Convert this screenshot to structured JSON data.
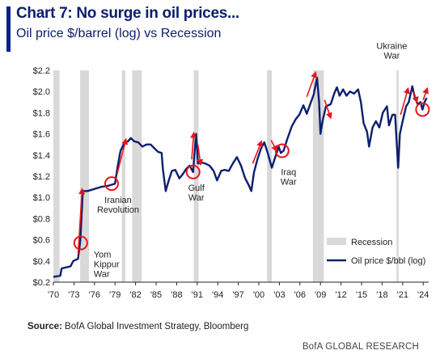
{
  "header": {
    "title": "Chart 7: No surge in oil prices...",
    "subtitle": "Oil price $/barrel (log) vs Recession"
  },
  "footer": {
    "source_label": "Source:",
    "source_text": " BofA Global Investment Strategy, Bloomberg",
    "brand": "BofA GLOBAL RESEARCH"
  },
  "colors": {
    "line": "#0d1f6e",
    "recession": "#d9d9d9",
    "arrow": "#e8141c",
    "circle": "#e8141c",
    "accent": "#0a1f8f"
  },
  "chart_data": {
    "type": "line",
    "ylabel": "",
    "xlabel": "",
    "ylim": [
      0.2,
      2.2
    ],
    "xlim": [
      1970,
      2024.8
    ],
    "grid": false,
    "legend_position": "bottom-right",
    "xticks": [
      {
        "x": 1970,
        "label": "'70"
      },
      {
        "x": 1973,
        "label": "'73"
      },
      {
        "x": 1976,
        "label": "'76"
      },
      {
        "x": 1979,
        "label": "'79"
      },
      {
        "x": 1982,
        "label": "'82"
      },
      {
        "x": 1985,
        "label": "'85"
      },
      {
        "x": 1988,
        "label": "'88"
      },
      {
        "x": 1991,
        "label": "'91"
      },
      {
        "x": 1994,
        "label": "'94"
      },
      {
        "x": 1997,
        "label": "'97"
      },
      {
        "x": 2000,
        "label": "'00"
      },
      {
        "x": 2003,
        "label": "'03"
      },
      {
        "x": 2006,
        "label": "'06"
      },
      {
        "x": 2009,
        "label": "'09"
      },
      {
        "x": 2012,
        "label": "'12"
      },
      {
        "x": 2015,
        "label": "'15"
      },
      {
        "x": 2018,
        "label": "'18"
      },
      {
        "x": 2021,
        "label": "'21"
      },
      {
        "x": 2024,
        "label": "'24"
      }
    ],
    "yticks": [
      {
        "y": 0.2,
        "label": "$0.2"
      },
      {
        "y": 0.4,
        "label": "$0.4"
      },
      {
        "y": 0.6,
        "label": "$0.6"
      },
      {
        "y": 0.8,
        "label": "$0.8"
      },
      {
        "y": 1.0,
        "label": "$1.0"
      },
      {
        "y": 1.2,
        "label": "$1.2"
      },
      {
        "y": 1.4,
        "label": "$1.4"
      },
      {
        "y": 1.6,
        "label": "$1.6"
      },
      {
        "y": 1.8,
        "label": "$1.8"
      },
      {
        "y": 2.0,
        "label": "$2.0"
      },
      {
        "y": 2.2,
        "label": "$2.2"
      }
    ],
    "recessions": [
      {
        "start": 1970.0,
        "end": 1970.9
      },
      {
        "start": 1973.9,
        "end": 1975.2
      },
      {
        "start": 1980.0,
        "end": 1980.5
      },
      {
        "start": 1981.5,
        "end": 1982.9
      },
      {
        "start": 1990.5,
        "end": 1991.2
      },
      {
        "start": 2001.2,
        "end": 2001.9
      },
      {
        "start": 2007.9,
        "end": 2009.5
      },
      {
        "start": 2020.1,
        "end": 2020.4
      }
    ],
    "series": [
      {
        "name": "Oil price $/bbl (log)",
        "points": [
          [
            1970.0,
            0.25
          ],
          [
            1971.0,
            0.26
          ],
          [
            1971.2,
            0.33
          ],
          [
            1972.5,
            0.35
          ],
          [
            1972.9,
            0.4
          ],
          [
            1973.6,
            0.42
          ],
          [
            1973.95,
            0.6
          ],
          [
            1974.3,
            1.06
          ],
          [
            1975.0,
            1.06
          ],
          [
            1976.0,
            1.08
          ],
          [
            1977.0,
            1.1
          ],
          [
            1978.0,
            1.11
          ],
          [
            1978.5,
            1.12
          ],
          [
            1979.0,
            1.13
          ],
          [
            1979.4,
            1.3
          ],
          [
            1979.8,
            1.44
          ],
          [
            1980.4,
            1.52
          ],
          [
            1980.9,
            1.53
          ],
          [
            1981.3,
            1.56
          ],
          [
            1981.8,
            1.53
          ],
          [
            1982.4,
            1.52
          ],
          [
            1983.0,
            1.48
          ],
          [
            1983.6,
            1.5
          ],
          [
            1984.2,
            1.5
          ],
          [
            1984.8,
            1.46
          ],
          [
            1985.3,
            1.43
          ],
          [
            1985.8,
            1.42
          ],
          [
            1986.0,
            1.26
          ],
          [
            1986.4,
            1.06
          ],
          [
            1986.8,
            1.15
          ],
          [
            1987.3,
            1.25
          ],
          [
            1987.8,
            1.26
          ],
          [
            1988.4,
            1.18
          ],
          [
            1988.9,
            1.22
          ],
          [
            1989.4,
            1.27
          ],
          [
            1989.9,
            1.3
          ],
          [
            1990.4,
            1.24
          ],
          [
            1990.7,
            1.5
          ],
          [
            1990.85,
            1.6
          ],
          [
            1991.1,
            1.32
          ],
          [
            1991.6,
            1.33
          ],
          [
            1992.2,
            1.32
          ],
          [
            1992.8,
            1.3
          ],
          [
            1993.4,
            1.25
          ],
          [
            1993.9,
            1.16
          ],
          [
            1994.5,
            1.25
          ],
          [
            1995.0,
            1.26
          ],
          [
            1995.6,
            1.25
          ],
          [
            1996.2,
            1.32
          ],
          [
            1996.8,
            1.38
          ],
          [
            1997.4,
            1.3
          ],
          [
            1998.0,
            1.18
          ],
          [
            1998.5,
            1.12
          ],
          [
            1998.9,
            1.06
          ],
          [
            1999.3,
            1.24
          ],
          [
            1999.8,
            1.36
          ],
          [
            2000.3,
            1.46
          ],
          [
            2000.8,
            1.52
          ],
          [
            2001.3,
            1.42
          ],
          [
            2001.9,
            1.28
          ],
          [
            2002.4,
            1.38
          ],
          [
            2002.9,
            1.48
          ],
          [
            2003.2,
            1.42
          ],
          [
            2003.6,
            1.44
          ],
          [
            2004.2,
            1.56
          ],
          [
            2004.8,
            1.67
          ],
          [
            2005.4,
            1.74
          ],
          [
            2005.9,
            1.78
          ],
          [
            2006.5,
            1.87
          ],
          [
            2007.0,
            1.79
          ],
          [
            2007.5,
            1.88
          ],
          [
            2008.0,
            1.97
          ],
          [
            2008.5,
            2.13
          ],
          [
            2008.8,
            1.9
          ],
          [
            2009.0,
            1.6
          ],
          [
            2009.3,
            1.72
          ],
          [
            2009.8,
            1.86
          ],
          [
            2010.5,
            1.88
          ],
          [
            2011.0,
            1.98
          ],
          [
            2011.4,
            2.04
          ],
          [
            2011.8,
            1.96
          ],
          [
            2012.3,
            2.02
          ],
          [
            2012.8,
            1.96
          ],
          [
            2013.3,
            2.0
          ],
          [
            2013.9,
            1.98
          ],
          [
            2014.5,
            2.02
          ],
          [
            2014.9,
            1.9
          ],
          [
            2015.3,
            1.7
          ],
          [
            2015.8,
            1.62
          ],
          [
            2016.1,
            1.48
          ],
          [
            2016.6,
            1.66
          ],
          [
            2017.1,
            1.72
          ],
          [
            2017.6,
            1.66
          ],
          [
            2018.1,
            1.8
          ],
          [
            2018.7,
            1.86
          ],
          [
            2019.0,
            1.68
          ],
          [
            2019.5,
            1.78
          ],
          [
            2019.9,
            1.78
          ],
          [
            2020.15,
            1.5
          ],
          [
            2020.35,
            1.28
          ],
          [
            2020.6,
            1.6
          ],
          [
            2021.0,
            1.72
          ],
          [
            2021.5,
            1.86
          ],
          [
            2021.9,
            1.9
          ],
          [
            2022.4,
            2.05
          ],
          [
            2022.8,
            1.94
          ],
          [
            2023.2,
            1.88
          ],
          [
            2023.6,
            1.9
          ],
          [
            2023.9,
            1.83
          ],
          [
            2024.2,
            1.9
          ],
          [
            2024.5,
            1.94
          ]
        ]
      },
      {
        "name": "Recession"
      }
    ],
    "annotations": [
      {
        "label": [
          "Yom",
          "Kippur",
          "War"
        ],
        "x": 1974.0,
        "y": 0.57,
        "circle": true
      },
      {
        "label": [
          "Iranian",
          "Revolution"
        ],
        "x": 1978.5,
        "y": 1.13,
        "circle": true
      },
      {
        "label": [
          "Gulf",
          "War"
        ],
        "x": 1990.4,
        "y": 1.24,
        "circle": true
      },
      {
        "label": [
          "Iraq",
          "War"
        ],
        "x": 2003.4,
        "y": 1.44,
        "circle": true
      },
      {
        "label": [
          "Ukraine",
          "War"
        ],
        "x": 2023.9,
        "y": 1.83,
        "circle": true
      }
    ],
    "arrows": [
      {
        "from": [
          1973.6,
          0.46
        ],
        "to": [
          1974.2,
          1.08
        ]
      },
      {
        "from": [
          1979.3,
          1.22
        ],
        "to": [
          1980.6,
          1.55
        ]
      },
      {
        "from": [
          1990.2,
          1.36
        ],
        "to": [
          1990.5,
          1.61
        ]
      },
      {
        "from": [
          1991.1,
          1.5
        ],
        "to": [
          1991.5,
          1.31
        ]
      },
      {
        "from": [
          1999.1,
          1.32
        ],
        "to": [
          2000.4,
          1.53
        ]
      },
      {
        "from": [
          2001.8,
          1.54
        ],
        "to": [
          2002.6,
          1.44
        ]
      },
      {
        "from": [
          2007.0,
          1.95
        ],
        "to": [
          2008.3,
          2.18
        ]
      },
      {
        "from": [
          2009.6,
          1.92
        ],
        "to": [
          2010.5,
          1.75
        ]
      },
      {
        "from": [
          2020.7,
          1.78
        ],
        "to": [
          2021.8,
          2.03
        ]
      },
      {
        "from": [
          2022.6,
          2.0
        ],
        "to": [
          2023.1,
          1.9
        ]
      },
      {
        "from": [
          2024.0,
          1.92
        ],
        "to": [
          2024.6,
          2.03
        ]
      }
    ]
  }
}
